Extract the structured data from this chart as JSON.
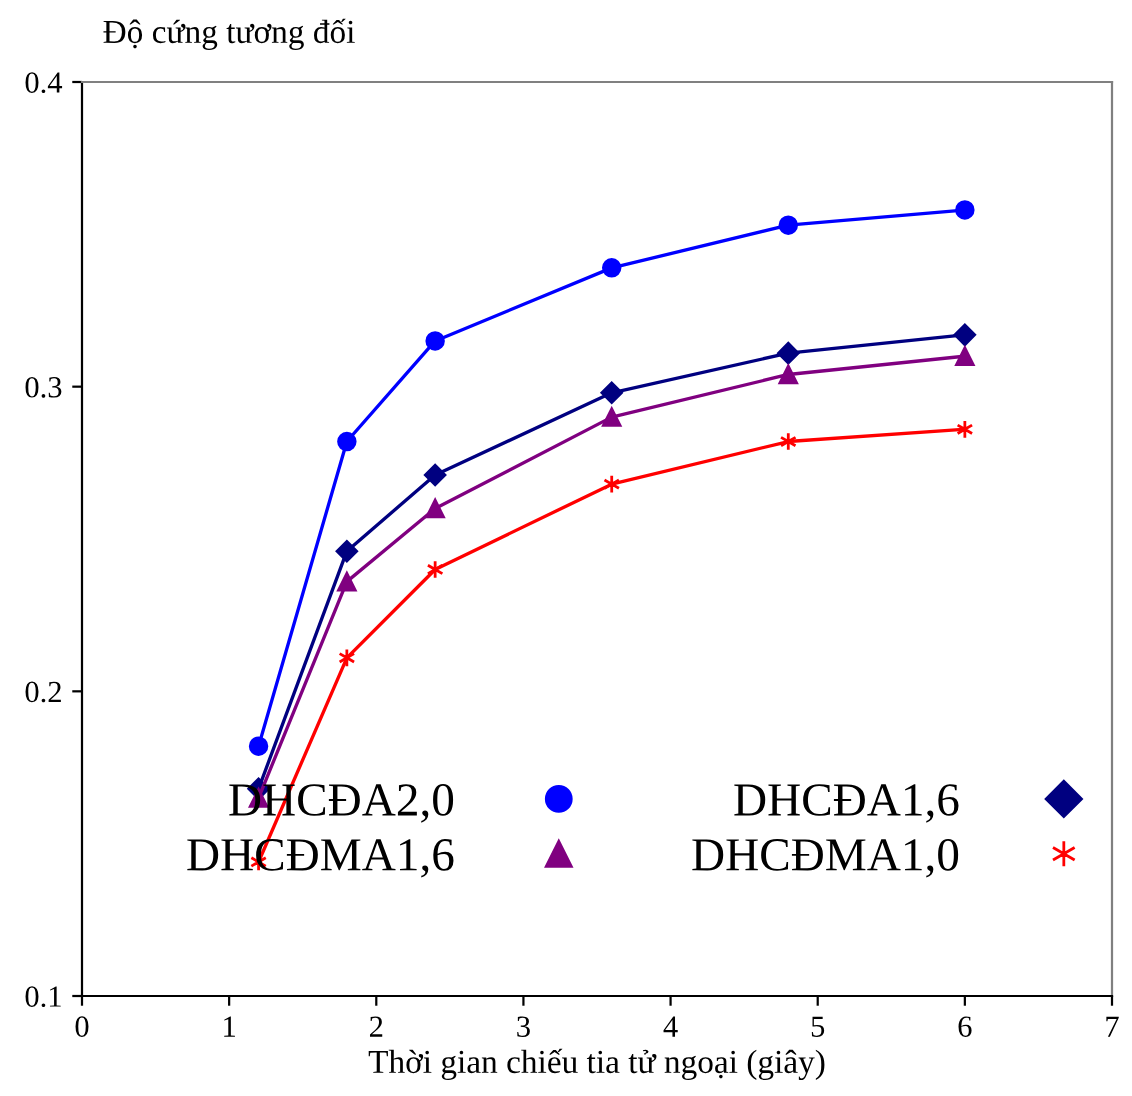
{
  "chart_data": {
    "type": "line",
    "xlabel": "Thời gian chiếu tia tử ngoại (giây)",
    "ylabel": "Độ cứng tương đối",
    "x": [
      1.2,
      1.8,
      2.4,
      3.6,
      4.8,
      6
    ],
    "series": [
      {
        "name": "DHCĐA2,0",
        "color": "#0000ff",
        "marker": "circle",
        "values": [
          0.182,
          0.282,
          0.315,
          0.339,
          0.353,
          0.358
        ]
      },
      {
        "name": "DHCĐA1,6",
        "color": "#000080",
        "marker": "diamond",
        "values": [
          0.168,
          0.246,
          0.271,
          0.298,
          0.311,
          0.317
        ]
      },
      {
        "name": "DHCĐMA1,6",
        "color": "#800080",
        "marker": "triangle",
        "values": [
          0.165,
          0.236,
          0.26,
          0.29,
          0.304,
          0.31
        ]
      },
      {
        "name": "DHCĐMA1,0",
        "color": "#ff0000",
        "marker": "cross",
        "values": [
          0.144,
          0.211,
          0.24,
          0.268,
          0.282,
          0.286
        ]
      }
    ],
    "xlim": [
      0,
      7
    ],
    "xticks": [
      0,
      1,
      2,
      3,
      4,
      5,
      6,
      7
    ],
    "ylim": [
      0.1,
      0.4
    ],
    "yticks": [
      0.1,
      0.2,
      0.3,
      0.4
    ],
    "grid": false,
    "legend": "bottom",
    "line_style": "solid"
  }
}
